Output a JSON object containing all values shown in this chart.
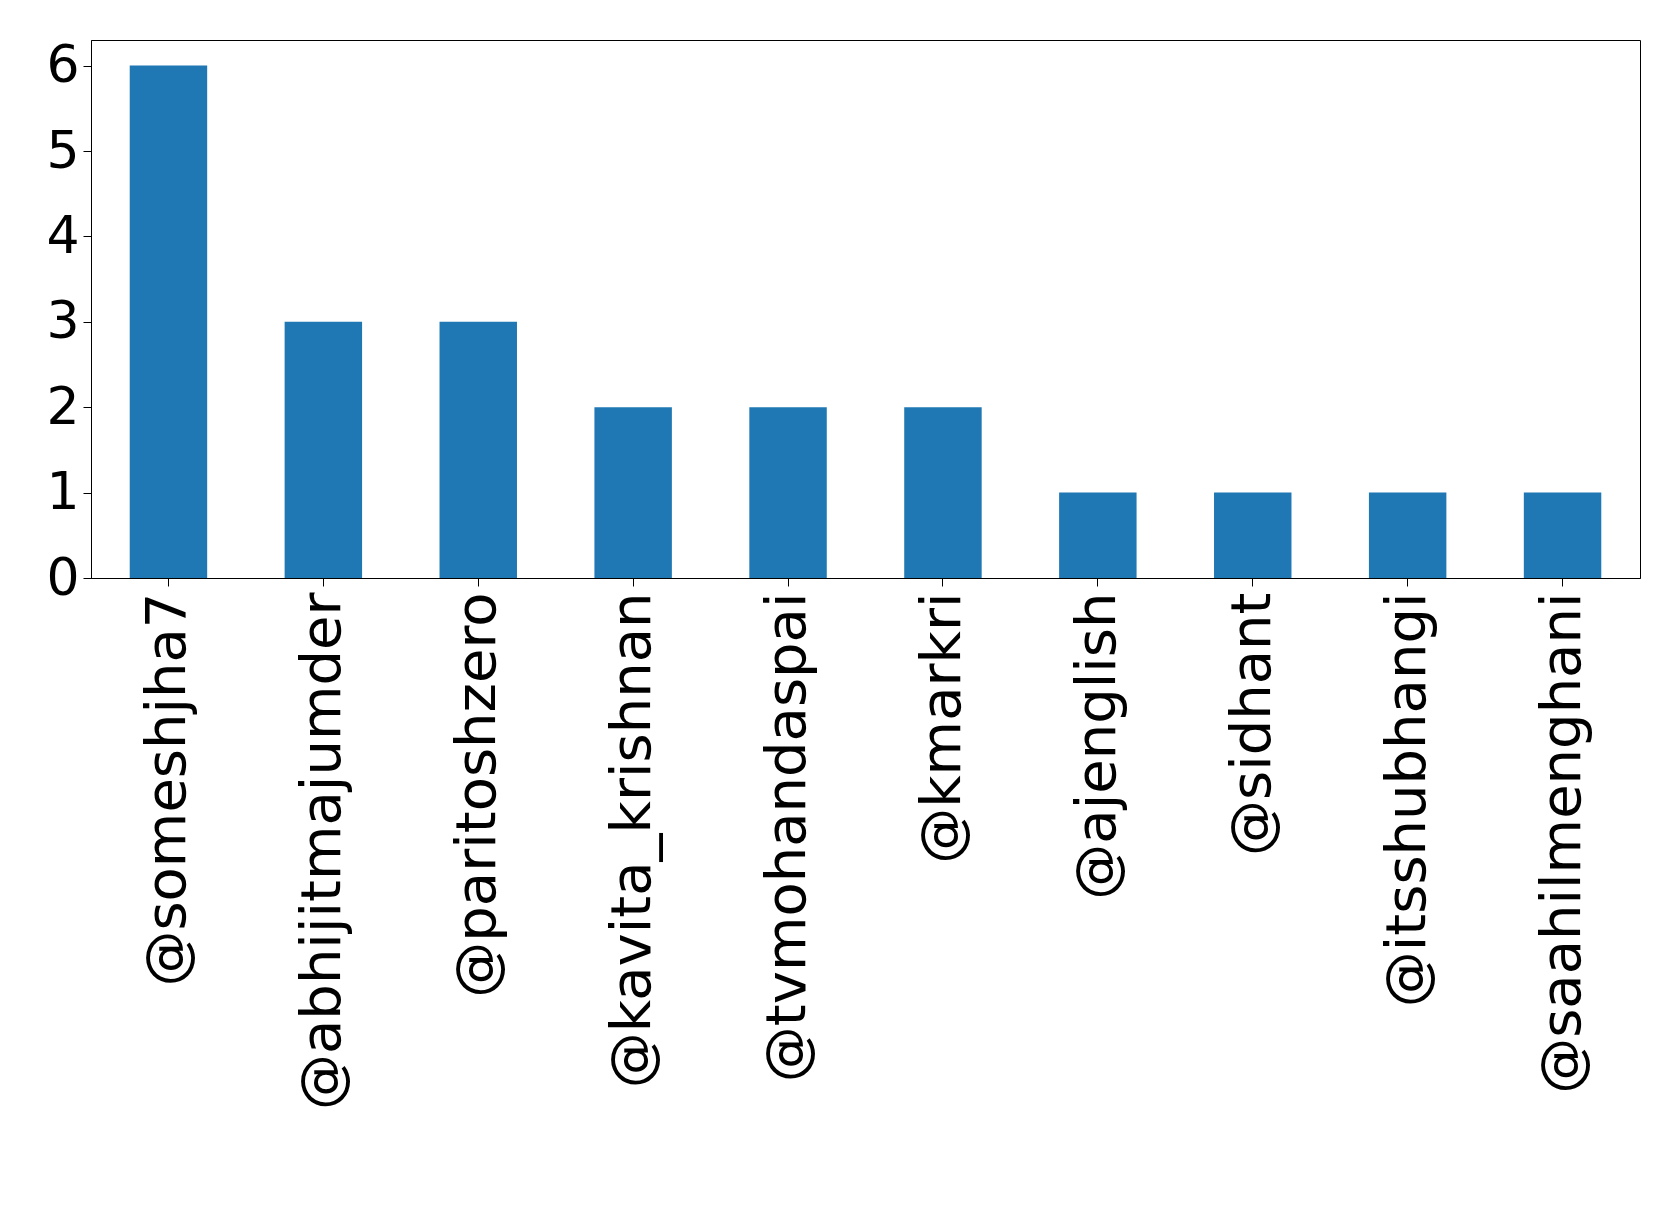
{
  "chart_data": {
    "type": "bar",
    "categories": [
      "@someshjha7",
      "@abhijitmajumder",
      "@paritoshzero",
      "@kavita_krishnan",
      "@tvmohandaspai",
      "@kmarkri",
      "@ajenglish",
      "@sidhant",
      "@itsshubhangi",
      "@saahilmenghani"
    ],
    "values": [
      6,
      3,
      3,
      2,
      2,
      2,
      1,
      1,
      1,
      1
    ],
    "color": "#1f77b4",
    "ylim": [
      0,
      6.3
    ],
    "yticks": [
      0,
      1,
      2,
      3,
      4,
      5,
      6
    ],
    "grid": false
  }
}
